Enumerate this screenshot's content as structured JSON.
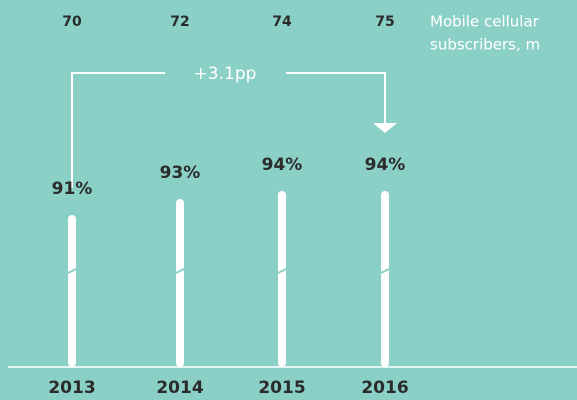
{
  "chart_data": {
    "type": "bar",
    "categories": [
      "2013",
      "2014",
      "2015",
      "2016"
    ],
    "values": [
      91,
      93,
      94,
      94
    ],
    "value_labels": [
      "91%",
      "93%",
      "94%",
      "94%"
    ],
    "color": "#ffffff",
    "ylim": [
      72,
      100
    ],
    "annotation": "+3.1pp",
    "secondary": {
      "name_lines": [
        "Mobile cellular",
        "subscribers, m"
      ],
      "values": [
        70,
        72,
        74,
        75
      ]
    }
  }
}
